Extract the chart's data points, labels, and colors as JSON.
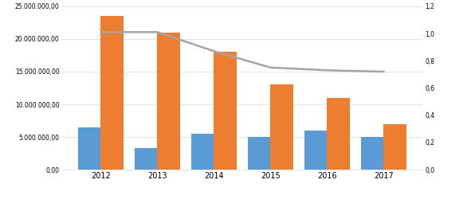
{
  "years": [
    "2012",
    "2013",
    "2014",
    "2015",
    "2016",
    "2017"
  ],
  "pressupost": [
    6500000,
    3300000,
    5500000,
    5000000,
    6000000,
    5000000
  ],
  "deute": [
    23500000,
    21000000,
    18000000,
    13000000,
    11000000,
    7000000
  ],
  "tipus_ibi": [
    1.01,
    1.01,
    0.87,
    0.75,
    0.73,
    0.72
  ],
  "bar_color_blue": "#5B9BD5",
  "bar_color_orange": "#ED7D31",
  "line_color": "#A5A5A5",
  "ylim_left": [
    0,
    25000000
  ],
  "ylim_right": [
    0,
    1.2
  ],
  "yticks_left": [
    0,
    5000000,
    10000000,
    15000000,
    20000000,
    25000000
  ],
  "yticks_right": [
    0,
    0.2,
    0.4,
    0.6,
    0.8,
    1.0,
    1.2
  ],
  "background_color": "#ffffff",
  "grid_color": "#d9d9d9"
}
